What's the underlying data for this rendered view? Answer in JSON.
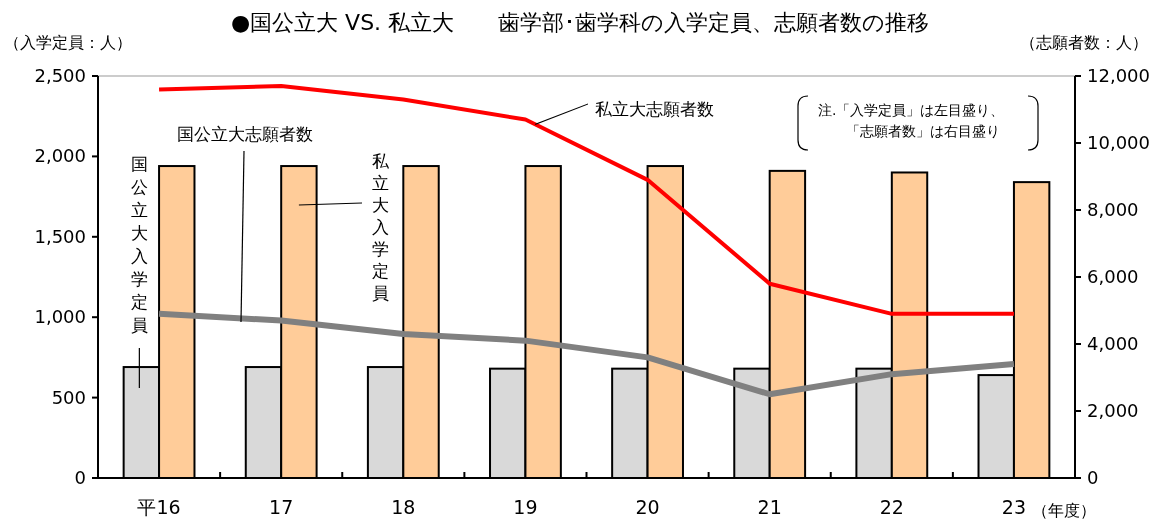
{
  "chart_data": {
    "type": "bar",
    "title": "●国公立大 VS. 私立大　　歯学部･歯学科の入学定員、志願者数の推移",
    "xlabel": "（年度）",
    "ylabel": "（入学定員：人）",
    "y2label": "（志願者数：人）",
    "categories": [
      "平16",
      "17",
      "18",
      "19",
      "20",
      "21",
      "22",
      "23"
    ],
    "series": [
      {
        "name": "国公立大入学定員",
        "color": "#d9d9d9",
        "values": [
          690,
          690,
          690,
          680,
          680,
          680,
          680,
          640
        ]
      },
      {
        "name": "私立大入学定員",
        "color": "#ffcc99",
        "values": [
          1940,
          1940,
          1940,
          1940,
          1940,
          1910,
          1900,
          1840
        ]
      },
      {
        "name": "国公立大志願者数",
        "type": "line",
        "axis": "y2",
        "color": "#808080",
        "values": [
          4900,
          4700,
          4300,
          4100,
          3600,
          2500,
          3100,
          3400
        ]
      },
      {
        "name": "私立大志願者数",
        "type": "line",
        "axis": "y2",
        "color": "#ff0000",
        "values": [
          11600,
          11700,
          11300,
          10700,
          8900,
          5800,
          4900,
          4900
        ]
      }
    ],
    "ylim": [
      0,
      2500
    ],
    "yticks": [
      {
        "value": 0,
        "label": "0"
      },
      {
        "value": 500,
        "label": "500"
      },
      {
        "value": 1000,
        "label": "1,000"
      },
      {
        "value": 1500,
        "label": "1,500"
      },
      {
        "value": 2000,
        "label": "2,000"
      },
      {
        "value": 2500,
        "label": "2,500"
      }
    ],
    "y2lim": [
      0,
      12000
    ],
    "y2ticks": [
      {
        "value": 0,
        "label": "0"
      },
      {
        "value": 2000,
        "label": "2,000"
      },
      {
        "value": 4000,
        "label": "4,000"
      },
      {
        "value": 6000,
        "label": "6,000"
      },
      {
        "value": 8000,
        "label": "8,000"
      },
      {
        "value": 10000,
        "label": "10,000"
      },
      {
        "value": 12000,
        "label": "12,000"
      }
    ],
    "annotations": [
      "注.「入学定員」は左目盛り、",
      "「志願者数」は右目盛り"
    ],
    "grid": false
  }
}
